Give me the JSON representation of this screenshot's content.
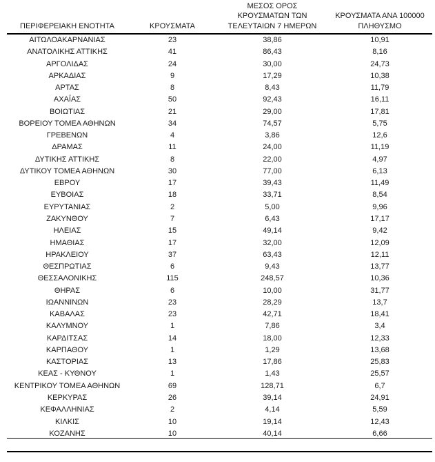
{
  "colors": {
    "text": "#1a1a1a",
    "line": "#000000",
    "background": "#ffffff"
  },
  "header": {
    "col1": "ΠΕΡΙΦΕΡΕΙΑΚΗ ΕΝΟΤΗΤΑ",
    "col2": "ΚΡΟΥΣΜΑΤΑ",
    "col3_lines": [
      "ΜΕΣΟΣ ΟΡΟΣ",
      "ΚΡΟΥΣΜΑΤΩΝ ΤΩΝ",
      "ΤΕΛΕΥΤΑΙΩΝ 7 ΗΜΕΡΩΝ"
    ],
    "col4_lines": [
      "ΚΡΟΥΣΜΑΤΑ ΑΝΑ 100000",
      "ΠΛΗΘΥΣΜΟ"
    ]
  },
  "rows": [
    {
      "region": "ΑΙΤΩΛΟΑΚΑΡΝΑΝΙΑΣ",
      "cases": "23",
      "avg7": "38,86",
      "per100k": "10,91"
    },
    {
      "region": "ΑΝΑΤΟΛΙΚΗΣ ΑΤΤΙΚΗΣ",
      "cases": "41",
      "avg7": "86,43",
      "per100k": "8,16"
    },
    {
      "region": "ΑΡΓΟΛΙΔΑΣ",
      "cases": "24",
      "avg7": "30,00",
      "per100k": "24,73"
    },
    {
      "region": "ΑΡΚΑΔΙΑΣ",
      "cases": "9",
      "avg7": "17,29",
      "per100k": "10,38"
    },
    {
      "region": "ΑΡΤΑΣ",
      "cases": "8",
      "avg7": "8,43",
      "per100k": "11,79"
    },
    {
      "region": "ΑΧΑΪΑΣ",
      "cases": "50",
      "avg7": "92,43",
      "per100k": "16,11"
    },
    {
      "region": "ΒΟΙΩΤΙΑΣ",
      "cases": "21",
      "avg7": "29,00",
      "per100k": "17,81"
    },
    {
      "region": "ΒΟΡΕΙΟΥ ΤΟΜΕΑ ΑΘΗΝΩΝ",
      "cases": "34",
      "avg7": "74,57",
      "per100k": "5,75"
    },
    {
      "region": "ΓΡΕΒΕΝΩΝ",
      "cases": "4",
      "avg7": "3,86",
      "per100k": "12,6"
    },
    {
      "region": "ΔΡΑΜΑΣ",
      "cases": "11",
      "avg7": "24,00",
      "per100k": "11,19"
    },
    {
      "region": "ΔΥΤΙΚΗΣ ΑΤΤΙΚΗΣ",
      "cases": "8",
      "avg7": "22,00",
      "per100k": "4,97"
    },
    {
      "region": "ΔΥΤΙΚΟΥ ΤΟΜΕΑ ΑΘΗΝΩΝ",
      "cases": "30",
      "avg7": "77,00",
      "per100k": "6,13"
    },
    {
      "region": "ΕΒΡΟΥ",
      "cases": "17",
      "avg7": "39,43",
      "per100k": "11,49"
    },
    {
      "region": "ΕΥΒΟΙΑΣ",
      "cases": "18",
      "avg7": "33,71",
      "per100k": "8,54"
    },
    {
      "region": "ΕΥΡΥΤΑΝΙΑΣ",
      "cases": "2",
      "avg7": "5,00",
      "per100k": "9,96"
    },
    {
      "region": "ΖΑΚΥΝΘΟΥ",
      "cases": "7",
      "avg7": "6,43",
      "per100k": "17,17"
    },
    {
      "region": "ΗΛΕΙΑΣ",
      "cases": "15",
      "avg7": "49,14",
      "per100k": "9,42"
    },
    {
      "region": "ΗΜΑΘΙΑΣ",
      "cases": "17",
      "avg7": "32,00",
      "per100k": "12,09"
    },
    {
      "region": "ΗΡΑΚΛΕΙΟΥ",
      "cases": "37",
      "avg7": "63,43",
      "per100k": "12,11"
    },
    {
      "region": "ΘΕΣΠΡΩΤΙΑΣ",
      "cases": "6",
      "avg7": "9,43",
      "per100k": "13,77"
    },
    {
      "region": "ΘΕΣΣΑΛΟΝΙΚΗΣ",
      "cases": "115",
      "avg7": "248,57",
      "per100k": "10,36"
    },
    {
      "region": "ΘΗΡΑΣ",
      "cases": "6",
      "avg7": "10,00",
      "per100k": "31,77"
    },
    {
      "region": "ΙΩΑΝΝΙΝΩΝ",
      "cases": "23",
      "avg7": "28,29",
      "per100k": "13,7"
    },
    {
      "region": "ΚΑΒΑΛΑΣ",
      "cases": "23",
      "avg7": "42,71",
      "per100k": "18,41"
    },
    {
      "region": "ΚΑΛΥΜΝΟΥ",
      "cases": "1",
      "avg7": "7,86",
      "per100k": "3,4"
    },
    {
      "region": "ΚΑΡΔΙΤΣΑΣ",
      "cases": "14",
      "avg7": "18,00",
      "per100k": "12,33"
    },
    {
      "region": "ΚΑΡΠΑΘΟΥ",
      "cases": "1",
      "avg7": "1,29",
      "per100k": "13,68"
    },
    {
      "region": "ΚΑΣΤΟΡΙΑΣ",
      "cases": "13",
      "avg7": "17,86",
      "per100k": "25,83"
    },
    {
      "region": "ΚΕΑΣ - ΚΥΘΝΟΥ",
      "cases": "1",
      "avg7": "1,43",
      "per100k": "25,57"
    },
    {
      "region": "ΚΕΝΤΡΙΚΟΥ ΤΟΜΕΑ ΑΘΗΝΩΝ",
      "cases": "69",
      "avg7": "128,71",
      "per100k": "6,7"
    },
    {
      "region": "ΚΕΡΚΥΡΑΣ",
      "cases": "26",
      "avg7": "39,14",
      "per100k": "24,91"
    },
    {
      "region": "ΚΕΦΑΛΛΗΝΙΑΣ",
      "cases": "2",
      "avg7": "4,14",
      "per100k": "5,59"
    },
    {
      "region": "ΚΙΛΚΙΣ",
      "cases": "10",
      "avg7": "19,14",
      "per100k": "12,43"
    },
    {
      "region": "ΚΟΖΑΝΗΣ",
      "cases": "10",
      "avg7": "40,14",
      "per100k": "6,66"
    }
  ]
}
